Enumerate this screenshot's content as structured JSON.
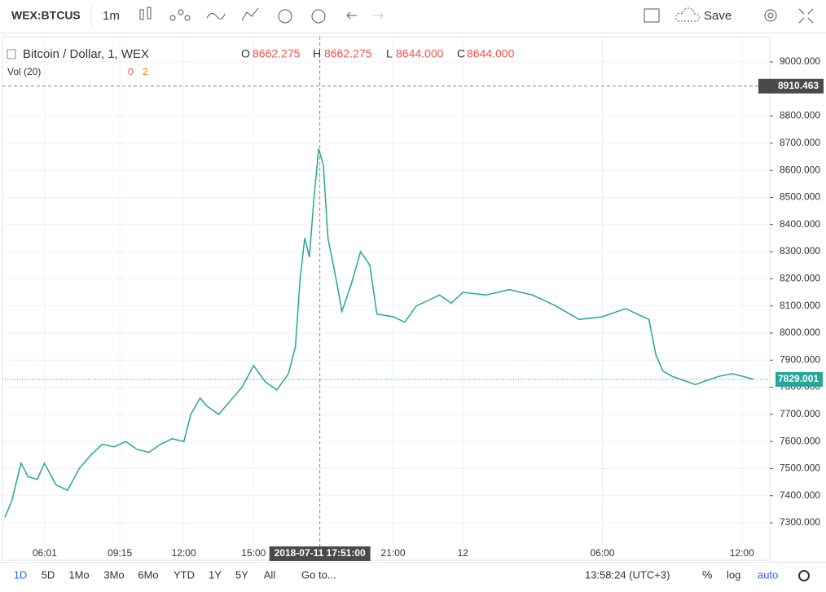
{
  "toolbar": {
    "symbol": "WEX:BTCUS",
    "interval": "1m",
    "save": "Save"
  },
  "legend": {
    "title": "Bitcoin / Dollar, 1, WEX",
    "open_label": "O",
    "open": "8662.275",
    "high_label": "H",
    "high": "8662.275",
    "low_label": "L",
    "low": "8644.000",
    "close_label": "C",
    "close": "8644.000",
    "volume": "Vol (20)",
    "vol_values": [
      "0",
      "2"
    ]
  },
  "chart_data": {
    "type": "line",
    "color": "#26a69a",
    "x": [
      4.3,
      4.6,
      5.0,
      5.3,
      5.7,
      6.0,
      6.5,
      7.0,
      7.5,
      8.0,
      8.5,
      9.0,
      9.5,
      10,
      10.5,
      11,
      11.5,
      12,
      12.3,
      12.7,
      13,
      13.5,
      14,
      14.5,
      15,
      15.5,
      16,
      16.5,
      16.8,
      17.0,
      17.2,
      17.4,
      17.6,
      17.8,
      18.0,
      18.2,
      18.5,
      18.8,
      19.2,
      19.6,
      20.0,
      20.3,
      21,
      21.5,
      22,
      22.5,
      23,
      23.5,
      24,
      25,
      26,
      27,
      28,
      29,
      30,
      31,
      32,
      32.3,
      32.6,
      33,
      34,
      35,
      35.6,
      36.5
    ],
    "values": [
      7320,
      7380,
      7520,
      7470,
      7460,
      7520,
      7440,
      7420,
      7500,
      7550,
      7590,
      7580,
      7600,
      7570,
      7560,
      7590,
      7610,
      7600,
      7700,
      7760,
      7730,
      7700,
      7750,
      7800,
      7880,
      7820,
      7790,
      7850,
      7950,
      8200,
      8350,
      8280,
      8500,
      8680,
      8620,
      8350,
      8220,
      8080,
      8180,
      8300,
      8250,
      8070,
      8060,
      8040,
      8100,
      8120,
      8140,
      8110,
      8150,
      8140,
      8160,
      8140,
      8100,
      8050,
      8060,
      8090,
      8050,
      7920,
      7860,
      7840,
      7810,
      7840,
      7850,
      7830
    ],
    "xlim": [
      4.2,
      37.2
    ],
    "ylim": [
      7162,
      9093
    ],
    "yticks": [
      {
        "value": 7300,
        "label": "7300.000"
      },
      {
        "value": 7400,
        "label": "7400.000"
      },
      {
        "value": 7500,
        "label": "7500.000"
      },
      {
        "value": 7600,
        "label": "7600.000"
      },
      {
        "value": 7700,
        "label": "7700.000"
      },
      {
        "value": 7800,
        "label": "7800.000"
      },
      {
        "value": 7900,
        "label": "7900.000"
      },
      {
        "value": 8000,
        "label": "8000.000"
      },
      {
        "value": 8100,
        "label": "8100.000"
      },
      {
        "value": 8200,
        "label": "8200.000"
      },
      {
        "value": 8300,
        "label": "8300.000"
      },
      {
        "value": 8400,
        "label": "8400.000"
      },
      {
        "value": 8500,
        "label": "8500.000"
      },
      {
        "value": 8600,
        "label": "8600.000"
      },
      {
        "value": 8700,
        "label": "8700.000"
      },
      {
        "value": 8800,
        "label": "8800.000"
      },
      {
        "value": 9000,
        "label": "9000.000"
      }
    ],
    "xticks": [
      {
        "value": 6.017,
        "label": "06:01"
      },
      {
        "value": 9.25,
        "label": "09:15"
      },
      {
        "value": 12,
        "label": "12:00"
      },
      {
        "value": 15,
        "label": "15:00"
      },
      {
        "value": 21,
        "label": "21:00"
      },
      {
        "value": 24,
        "label": "12"
      },
      {
        "value": 30,
        "label": "06:00"
      },
      {
        "value": 36,
        "label": "12:00"
      }
    ],
    "crosshair_price": {
      "value": 8910.463,
      "label": "8910.463"
    },
    "last_price": {
      "value": 7829.001,
      "label": "7829.001"
    },
    "crosshair_time": {
      "value": 17.85,
      "label": "2018-07-11 17:51:00"
    },
    "grid": true
  },
  "bottom": {
    "ranges": [
      "1D",
      "5D",
      "1Mo",
      "3Mo",
      "6Mo",
      "YTD",
      "1Y",
      "5Y",
      "All"
    ],
    "goto": "Go to...",
    "clock": "13:58:24 (UTC+3)",
    "percent": "%",
    "log": "log",
    "auto": "auto"
  }
}
